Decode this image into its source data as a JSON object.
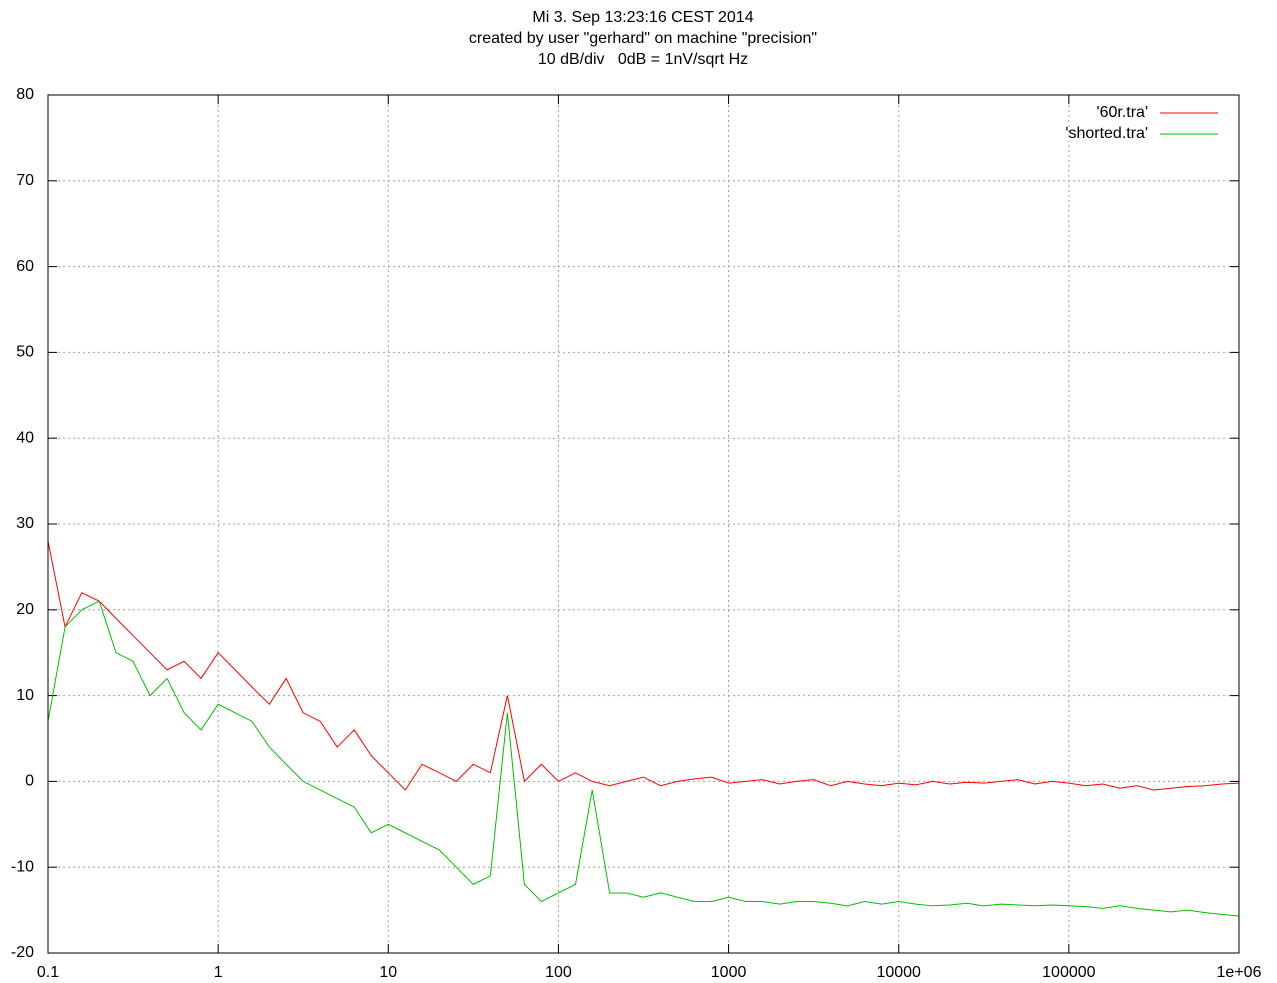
{
  "chart_data": {
    "type": "line",
    "title_lines": [
      "Mi 3. Sep 13:23:16 CEST 2014",
      "created by user \"gerhard\" on machine \"precision\"",
      "10 dB/div   0dB = 1nV/sqrt Hz"
    ],
    "x": [
      0.1,
      0.126,
      0.158,
      0.2,
      0.251,
      0.316,
      0.398,
      0.501,
      0.631,
      0.794,
      1,
      1.26,
      1.58,
      2,
      2.51,
      3.16,
      3.98,
      5.01,
      6.31,
      7.94,
      10,
      12.6,
      15.8,
      20,
      25.1,
      31.6,
      39.8,
      50.1,
      63.1,
      79.4,
      100,
      126,
      158,
      200,
      251,
      316,
      398,
      501,
      631,
      794,
      1000,
      1260,
      1580,
      2000,
      2510,
      3160,
      3980,
      5010,
      6310,
      7940,
      10000,
      12600,
      15800,
      20000,
      25100,
      31600,
      39800,
      50100,
      63100,
      79400,
      100000,
      126000,
      158000,
      200000,
      251000,
      316000,
      398000,
      501000,
      631000,
      794000,
      1000000
    ],
    "series": [
      {
        "name": "'60r.tra'",
        "color": "#ff0000",
        "values": [
          28,
          18,
          22,
          21,
          19,
          17,
          15,
          13,
          14,
          12,
          15,
          13,
          11,
          9,
          12,
          8,
          7,
          4,
          6,
          3,
          1,
          -1,
          2,
          1,
          0,
          2,
          1,
          10,
          0,
          2,
          0,
          1,
          0,
          -0.5,
          0,
          0.5,
          -0.5,
          0,
          0.3,
          0.5,
          -0.2,
          0,
          0.2,
          -0.3,
          0,
          0.2,
          -0.5,
          0,
          -0.3,
          -0.5,
          -0.2,
          -0.4,
          0,
          -0.3,
          -0.1,
          -0.2,
          0,
          0.2,
          -0.3,
          0,
          -0.2,
          -0.5,
          -0.3,
          -0.8,
          -0.5,
          -1,
          -0.8,
          -0.6,
          -0.5,
          -0.3,
          -0.2
        ]
      },
      {
        "name": "'shorted.tra'",
        "color": "#00c000",
        "values": [
          7,
          18,
          20,
          21,
          15,
          14,
          10,
          12,
          8,
          6,
          9,
          8,
          7,
          4,
          2,
          0,
          -1,
          -2,
          -3,
          -6,
          -5,
          -6,
          -7,
          -8,
          -10,
          -12,
          -11,
          8,
          -12,
          -14,
          -13,
          -12,
          -1,
          -13,
          -13,
          -13.5,
          -13,
          -13.5,
          -14,
          -14,
          -13.5,
          -14,
          -14,
          -14.3,
          -14,
          -14,
          -14.2,
          -14.5,
          -14,
          -14.3,
          -14,
          -14.3,
          -14.5,
          -14.4,
          -14.2,
          -14.5,
          -14.3,
          -14.4,
          -14.5,
          -14.4,
          -14.5,
          -14.6,
          -14.8,
          -14.5,
          -14.8,
          -15,
          -15.2,
          -15,
          -15.3,
          -15.5,
          -15.7
        ]
      }
    ],
    "xlog": true,
    "xlim": [
      0.1,
      1000000
    ],
    "ylim": [
      -20,
      80
    ],
    "xticks": [
      0.1,
      1,
      10,
      100,
      1000,
      10000,
      100000,
      {
        "value": 1000000,
        "label": "1e+06"
      }
    ],
    "yticks": [
      -20,
      -10,
      0,
      10,
      20,
      30,
      40,
      50,
      60,
      70,
      80
    ],
    "grid": true,
    "legend": "top-right"
  }
}
